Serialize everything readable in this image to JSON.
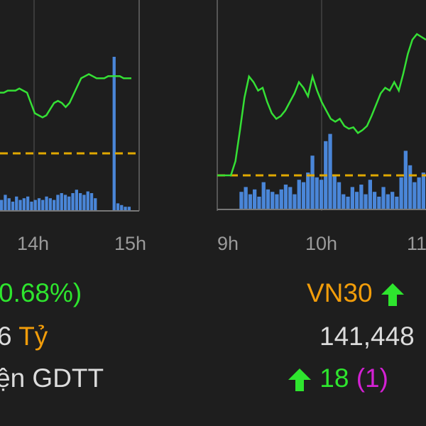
{
  "chart_data": [
    {
      "type": "line",
      "title": "",
      "x_ticks": [
        "14h",
        "15h"
      ],
      "reference_line": "dashed",
      "series": [
        {
          "kind": "price",
          "color": "#35e035",
          "values": [
            0.55,
            0.55,
            0.56,
            0.56,
            0.56,
            0.57,
            0.56,
            0.55,
            0.5,
            0.45,
            0.44,
            0.43,
            0.44,
            0.47,
            0.5,
            0.51,
            0.5,
            0.48,
            0.5,
            0.54,
            0.58,
            0.62,
            0.63,
            0.64,
            0.63,
            0.62,
            0.62,
            0.62,
            0.63,
            0.63,
            0.63,
            0.63,
            0.62,
            0.62,
            0.62
          ]
        },
        {
          "kind": "volume",
          "color": "#4a86d8",
          "values": [
            0.06,
            0.09,
            0.07,
            0.05,
            0.08,
            0.06,
            0.07,
            0.08,
            0.05,
            0.06,
            0.07,
            0.06,
            0.08,
            0.07,
            0.06,
            0.09,
            0.1,
            0.09,
            0.08,
            0.1,
            0.12,
            0.1,
            0.09,
            0.11,
            0.1,
            0.07,
            0.0,
            0.0,
            0.0,
            0.0,
            0.9,
            0.04,
            0.03,
            0.02,
            0.02
          ]
        }
      ],
      "grid": true
    },
    {
      "type": "line",
      "title": "",
      "x_ticks": [
        "9h",
        "10h",
        "11"
      ],
      "reference_line": "dashed",
      "series": [
        {
          "kind": "price",
          "color": "#35e035",
          "values": [
            0.0,
            0.0,
            0.0,
            0.0,
            0.1,
            0.32,
            0.55,
            0.7,
            0.66,
            0.6,
            0.62,
            0.52,
            0.44,
            0.4,
            0.42,
            0.46,
            0.52,
            0.58,
            0.66,
            0.62,
            0.56,
            0.7,
            0.6,
            0.52,
            0.46,
            0.4,
            0.38,
            0.4,
            0.35,
            0.33,
            0.34,
            0.3,
            0.32,
            0.35,
            0.42,
            0.5,
            0.58,
            0.62,
            0.6,
            0.66,
            0.6,
            0.72,
            0.86,
            0.96,
            1.0,
            0.98,
            0.96
          ]
        },
        {
          "kind": "volume",
          "color": "#4a86d8",
          "values": [
            0.0,
            0.0,
            0.0,
            0.0,
            0.0,
            0.14,
            0.18,
            0.12,
            0.16,
            0.1,
            0.22,
            0.16,
            0.14,
            0.12,
            0.16,
            0.2,
            0.18,
            0.12,
            0.24,
            0.22,
            0.3,
            0.44,
            0.26,
            0.24,
            0.56,
            0.62,
            0.28,
            0.22,
            0.12,
            0.1,
            0.18,
            0.14,
            0.2,
            0.12,
            0.24,
            0.14,
            0.1,
            0.18,
            0.12,
            0.14,
            0.1,
            0.26,
            0.48,
            0.36,
            0.22,
            0.26,
            0.3
          ]
        }
      ],
      "grid": true
    }
  ],
  "stats": {
    "pct_change": "0.68%)",
    "value_fragment": "6",
    "unit": "Tỷ",
    "gdtt_label": "ện GDTT",
    "index_name": "VN30",
    "volume": "141,448",
    "advancers": "18",
    "advancers_paren": "(1)"
  },
  "colors": {
    "up": "#2ee52e",
    "index": "#f29d0a",
    "neutral": "#dcdcdc",
    "ceiling": "#d321d3"
  }
}
